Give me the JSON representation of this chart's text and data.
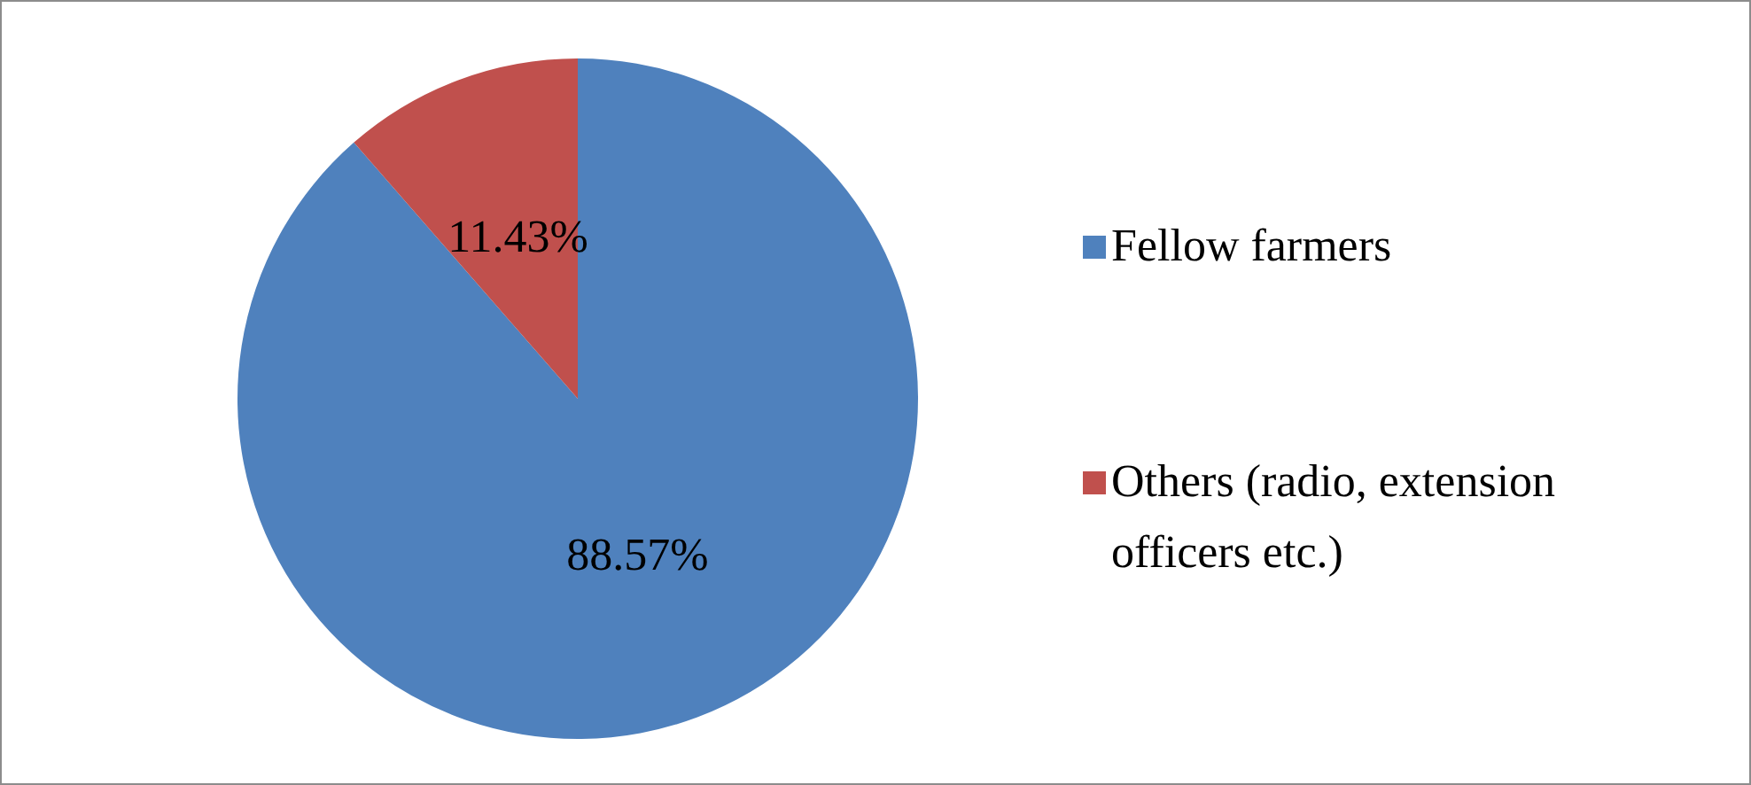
{
  "chart_data": {
    "type": "pie",
    "categories": [
      "Fellow farmers",
      "Others (radio, extension officers etc.)"
    ],
    "values": [
      88.57,
      11.43
    ],
    "value_labels": [
      "88.57%",
      "11.43%"
    ],
    "colors": [
      "#4f81bd",
      "#c0504d"
    ],
    "legend": "right"
  }
}
